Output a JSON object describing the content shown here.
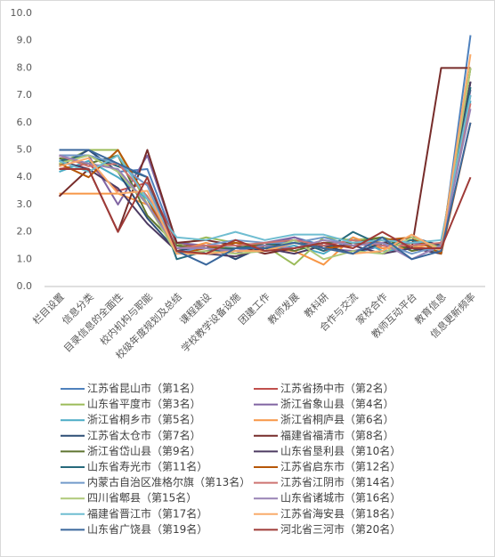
{
  "chart_data": {
    "type": "line",
    "categories": [
      "栏目设置",
      "信息分类",
      "目录信息的全面性",
      "校内机构与职能",
      "校级年度规划及总结",
      "课程建设",
      "学校教学设备设施",
      "团建工作",
      "教师发展",
      "教科研",
      "合作与交流",
      "家校合作",
      "教师互动平台",
      "教育信息",
      "信息更新频率"
    ],
    "ylim": [
      0,
      10
    ],
    "yticks": [
      {
        "value": 0,
        "label": "0.0"
      },
      {
        "value": 1,
        "label": "1.0"
      },
      {
        "value": 2,
        "label": "2.0"
      },
      {
        "value": 3,
        "label": "3.0"
      },
      {
        "value": 4,
        "label": "4.0"
      },
      {
        "value": 5,
        "label": "5.0"
      },
      {
        "value": 6,
        "label": "6.0"
      },
      {
        "value": 7,
        "label": "7.0"
      },
      {
        "value": 8,
        "label": "8.0"
      },
      {
        "value": 9,
        "label": "9.0"
      },
      {
        "value": 10,
        "label": "10.0"
      }
    ],
    "grid": false,
    "series": [
      {
        "name": "江苏省昆山市（第1名）",
        "color": "#4f81bd",
        "values": [
          5,
          5,
          4.2,
          4.3,
          1.5,
          1.2,
          1.4,
          1.5,
          1.8,
          1.5,
          1.2,
          1.5,
          1.5,
          1.2,
          9.2
        ]
      },
      {
        "name": "江苏省扬中市（第2名）",
        "color": "#c0504d",
        "values": [
          4.3,
          4.5,
          3.5,
          3.8,
          1.6,
          1.4,
          1.3,
          1.5,
          1.7,
          1.3,
          1.6,
          1.4,
          1.6,
          1.5,
          7
        ]
      },
      {
        "name": "山东省平度市（第3名）",
        "color": "#9bbb59",
        "values": [
          4.5,
          5,
          5,
          3,
          1.5,
          1.8,
          1.6,
          1.5,
          0.8,
          1.8,
          1.7,
          1.8,
          1.5,
          1.2,
          8
        ]
      },
      {
        "name": "浙江省象山县（第4名）",
        "color": "#8064a2",
        "values": [
          4.8,
          4.8,
          3,
          4.8,
          1.6,
          1.5,
          1.2,
          1.6,
          1.8,
          1.4,
          1.3,
          1.5,
          1.6,
          1.4,
          7.2
        ]
      },
      {
        "name": "浙江省桐乡市（第5名）",
        "color": "#4bacc6",
        "values": [
          4.2,
          4.6,
          4,
          3.2,
          1.4,
          1.4,
          1.5,
          1.3,
          1.5,
          1.2,
          1.8,
          1.3,
          1.4,
          1.3,
          6.8
        ]
      },
      {
        "name": "浙江省桐庐县（第6名）",
        "color": "#f79646",
        "values": [
          3.4,
          3.4,
          3.4,
          3,
          1.3,
          1.6,
          1.3,
          1.4,
          1.3,
          0.8,
          1.8,
          1.4,
          1.4,
          1.6,
          7.5
        ]
      },
      {
        "name": "江苏省太仓市（第7名）",
        "color": "#2c4d75",
        "values": [
          4.4,
          5,
          4.2,
          2.5,
          1.3,
          1.5,
          1,
          1.5,
          1.6,
          1.5,
          1.2,
          1.6,
          1.8,
          1.5,
          7.5
        ]
      },
      {
        "name": "福建省福清市（第8名）",
        "color": "#772c2a",
        "values": [
          3.3,
          4.3,
          2,
          5,
          1.6,
          1.7,
          1.5,
          1.2,
          1.4,
          1.6,
          1.6,
          1.6,
          1.4,
          8,
          8
        ]
      },
      {
        "name": "浙江省岱山县（第9名）",
        "color": "#5f7530",
        "values": [
          4.7,
          4.5,
          4.8,
          2.6,
          1.5,
          1.4,
          1.4,
          1.6,
          1.3,
          1.6,
          1.6,
          1.8,
          1.3,
          1.5,
          8
        ]
      },
      {
        "name": "山东省垦利县（第10名）",
        "color": "#4d3b62",
        "values": [
          4.6,
          4.3,
          3.6,
          2.3,
          1.3,
          1.2,
          1.1,
          1.4,
          1.2,
          1.5,
          1.5,
          1.2,
          1.4,
          1.2,
          7.5
        ]
      },
      {
        "name": "山东省寿光市（第11名）",
        "color": "#276a7c",
        "values": [
          4.6,
          4.8,
          4.4,
          4,
          1,
          1.3,
          1.4,
          1.5,
          1.7,
          1.3,
          2,
          1.5,
          1.7,
          1.4,
          7.3
        ]
      },
      {
        "name": "江苏省启东市（第12名）",
        "color": "#b65708",
        "values": [
          4.5,
          4,
          5,
          3.2,
          1.2,
          1.4,
          1.6,
          1.4,
          1.6,
          1.4,
          1.5,
          1.7,
          1.8,
          1.2,
          6
        ]
      },
      {
        "name": "内蒙古自治区准格尔旗（第13名）",
        "color": "#729aca",
        "values": [
          4.8,
          4.8,
          4.5,
          3.7,
          1.2,
          1.5,
          1.7,
          1.6,
          1.6,
          1.8,
          1.5,
          1.6,
          1.2,
          1.5,
          7
        ]
      },
      {
        "name": "江苏省江阴市（第14名）",
        "color": "#cd7371",
        "values": [
          4.8,
          4.4,
          4.5,
          3.3,
          1.4,
          1.5,
          1.5,
          1.6,
          1.7,
          1.5,
          1.7,
          1.5,
          1.5,
          1.6,
          6.7
        ]
      },
      {
        "name": "四川省郫县（第15名）",
        "color": "#afc97a",
        "values": [
          4.5,
          4.8,
          4.2,
          3,
          1.2,
          1.3,
          1.2,
          1.3,
          1.7,
          1,
          1.3,
          1.2,
          1.8,
          1.4,
          8
        ]
      },
      {
        "name": "山东省诸城市（第16名）",
        "color": "#9983b5",
        "values": [
          4.8,
          4.5,
          4.3,
          3,
          1.4,
          1.4,
          1.3,
          1.5,
          1.4,
          1.7,
          1.5,
          1.6,
          1,
          1.5,
          6.5
        ]
      },
      {
        "name": "福建省晋江市（第17名）",
        "color": "#6fbdd1",
        "values": [
          4.6,
          4.2,
          4.8,
          3.2,
          1.8,
          1.7,
          2,
          1.7,
          1.9,
          1.9,
          1.6,
          1.7,
          1.6,
          1.7,
          7
        ]
      },
      {
        "name": "江苏省海安县（第18名）",
        "color": "#f9ab6b",
        "values": [
          4.4,
          4.7,
          3.4,
          3.5,
          1.2,
          1.2,
          1.3,
          1.3,
          1.6,
          1.4,
          1.2,
          1.3,
          1.9,
          1.3,
          8.5
        ]
      },
      {
        "name": "山东省广饶县（第19名）",
        "color": "#3a679c",
        "values": [
          5,
          5,
          4.5,
          4,
          1.3,
          0.8,
          1.4,
          1.4,
          1.6,
          1.4,
          1.2,
          1.8,
          1,
          1.3,
          6
        ]
      },
      {
        "name": "河北省三河市（第20名）",
        "color": "#9f3b38",
        "values": [
          4.3,
          4.3,
          2,
          4,
          1.3,
          1.2,
          1.7,
          1.3,
          1.4,
          1.6,
          1.4,
          2,
          1.4,
          1.4,
          4
        ]
      }
    ]
  }
}
